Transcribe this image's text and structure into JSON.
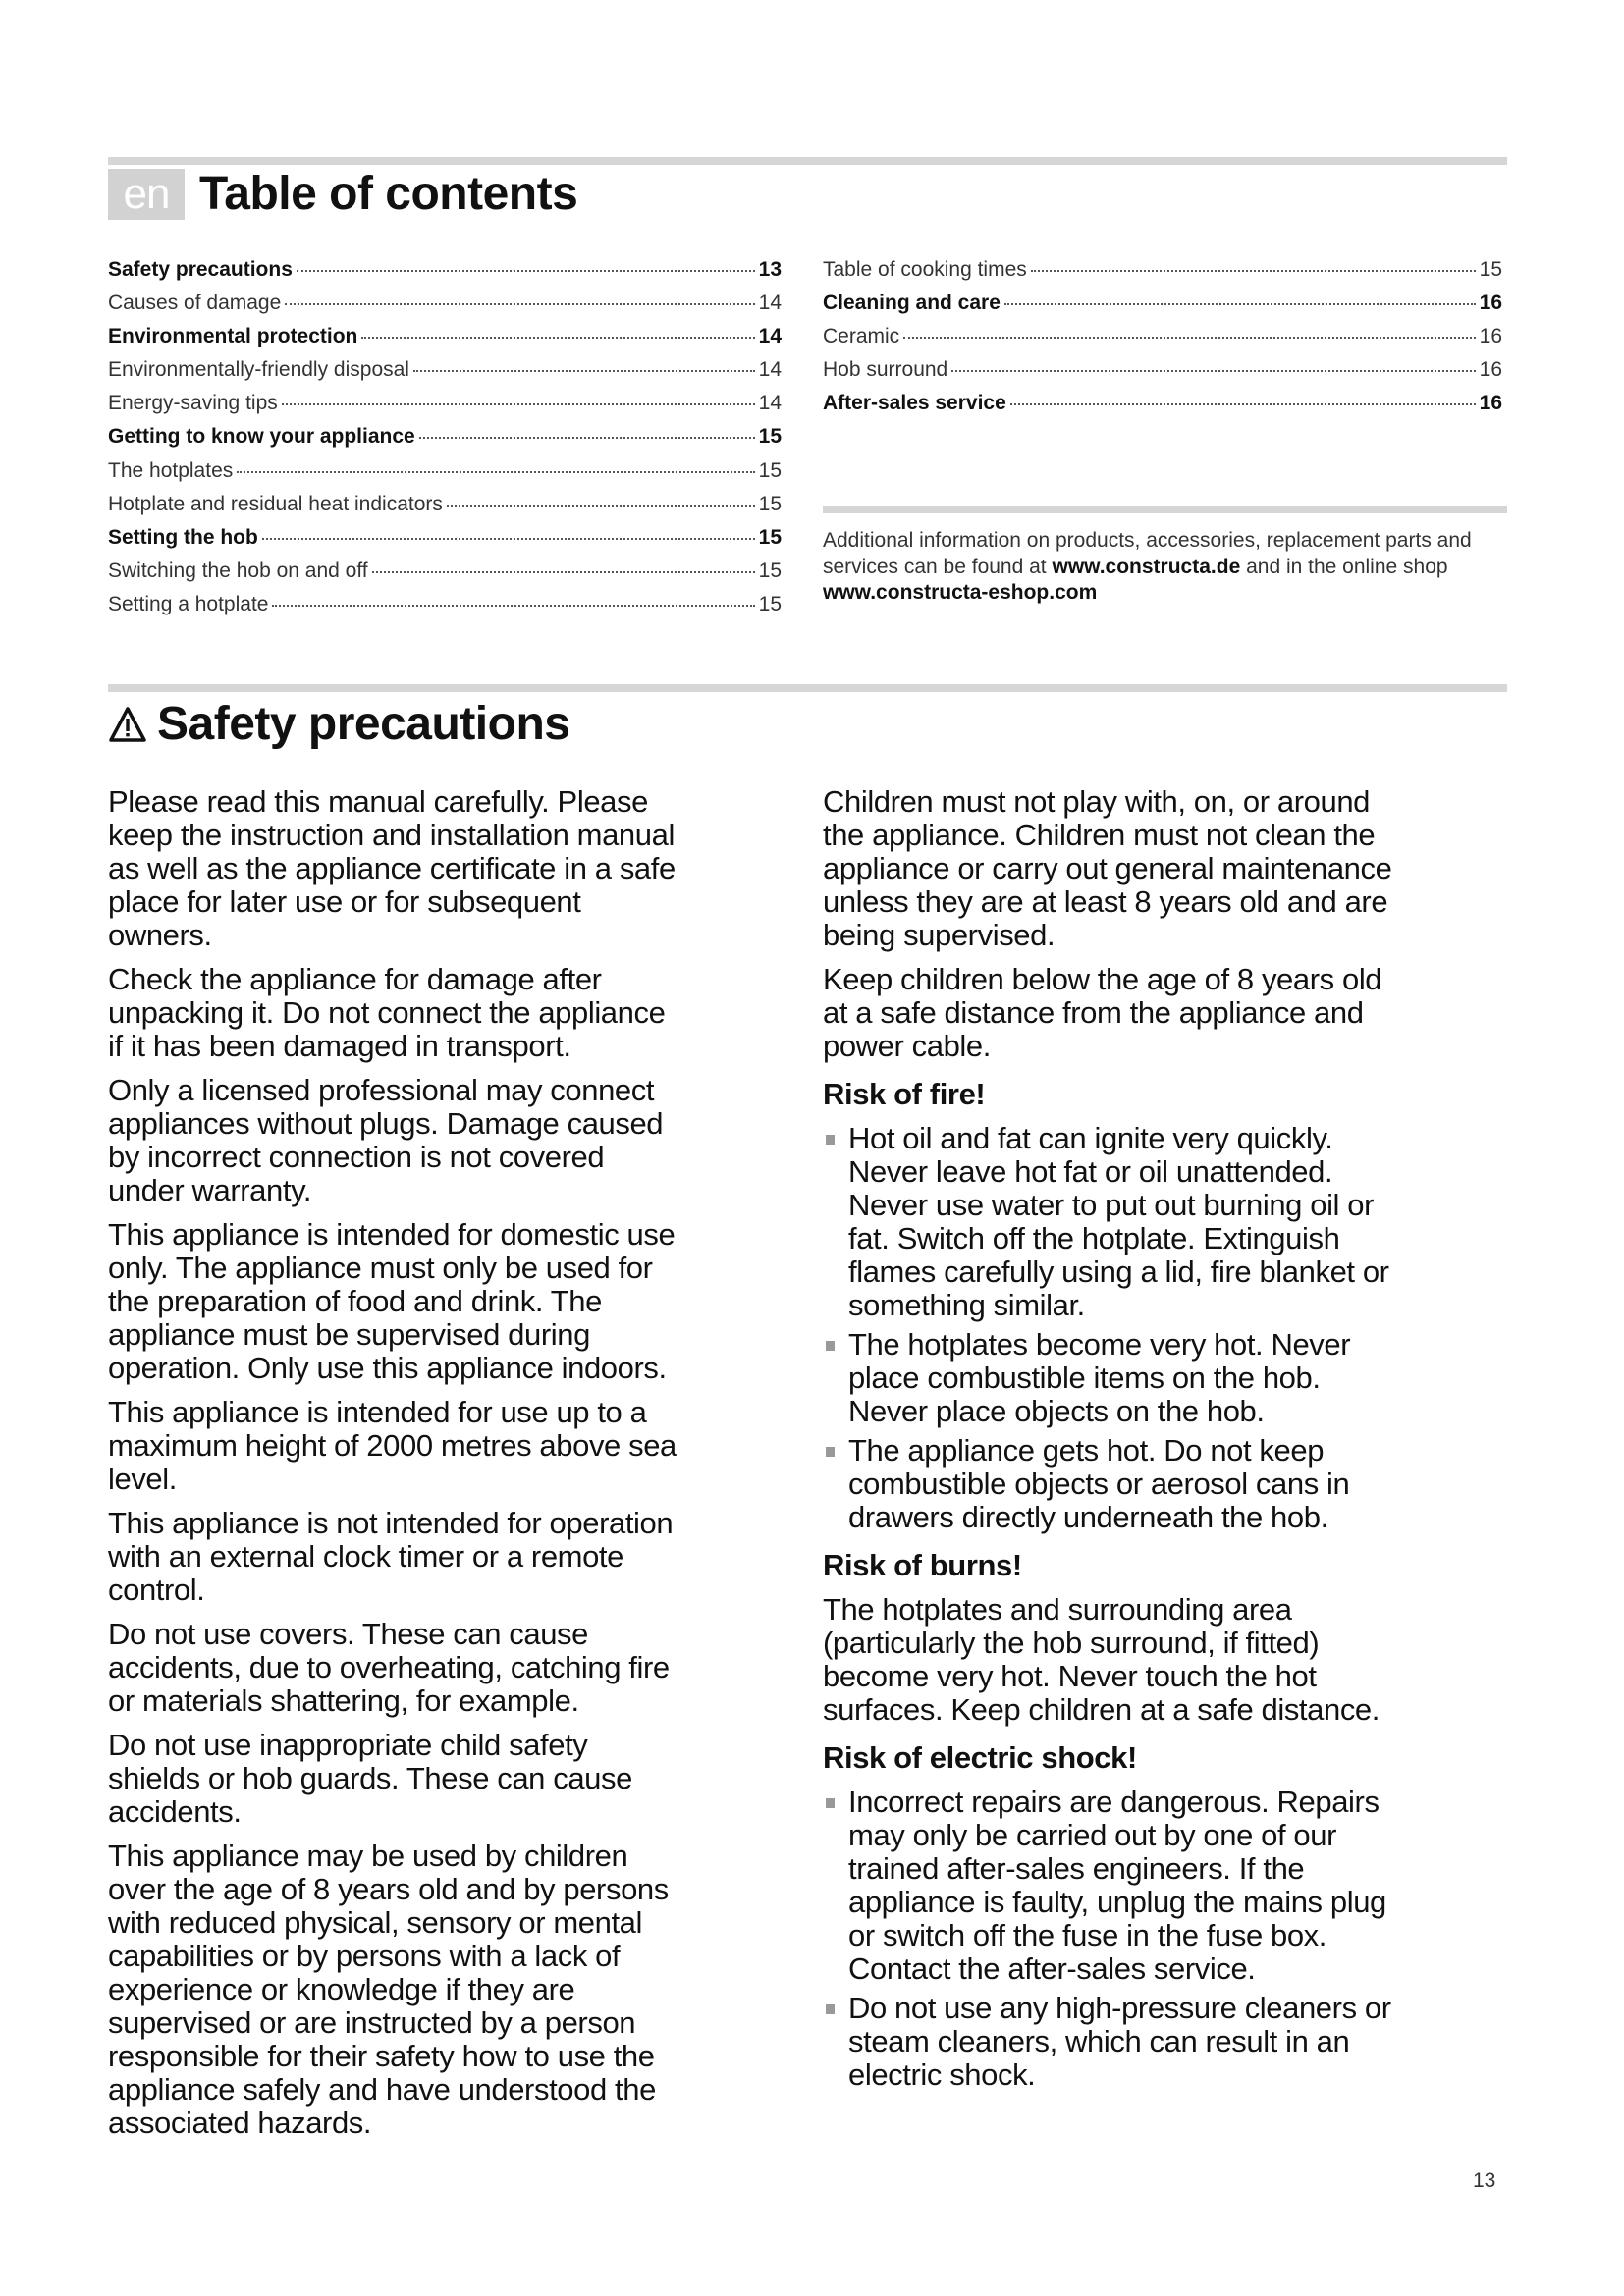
{
  "toc": {
    "lang_badge": "en",
    "title": "Table of contents",
    "left": [
      {
        "label": "Safety precautions",
        "page": "13",
        "main": true
      },
      {
        "label": "Causes of damage",
        "page": "14",
        "main": false
      },
      {
        "label": "Environmental protection",
        "page": "14",
        "main": true
      },
      {
        "label": "Environmentally-friendly disposal",
        "page": "14",
        "main": false
      },
      {
        "label": "Energy-saving tips",
        "page": "14",
        "main": false
      },
      {
        "label": "Getting to know your appliance",
        "page": "15",
        "main": true
      },
      {
        "label": "The hotplates",
        "page": "15",
        "main": false
      },
      {
        "label": "Hotplate and residual heat indicators",
        "page": "15",
        "main": false
      },
      {
        "label": "Setting the hob",
        "page": "15",
        "main": true
      },
      {
        "label": "Switching the hob on and off",
        "page": "15",
        "main": false
      },
      {
        "label": "Setting a hotplate",
        "page": "15",
        "main": false
      }
    ],
    "right": [
      {
        "label": "Table of cooking times",
        "page": "15",
        "main": false
      },
      {
        "label": "Cleaning and care",
        "page": "16",
        "main": true
      },
      {
        "label": "Ceramic",
        "page": "16",
        "main": false
      },
      {
        "label": "Hob surround",
        "page": "16",
        "main": false
      },
      {
        "label": "After-sales service",
        "page": "16",
        "main": true
      }
    ],
    "additional_info": {
      "text1": "Additional information on products, accessories, replacement parts and services can be found at ",
      "link1": "www.constructa.de",
      "text2": " and in the online shop ",
      "link2": "www.constructa-eshop.com"
    }
  },
  "safety": {
    "title": "Safety precautions",
    "icon": "warning-triangle-icon",
    "left": [
      {
        "type": "p",
        "text": "Please read this manual carefully. Please\nkeep the instruction and installation manual\nas well as the appliance certificate in a safe\nplace for later use or for subsequent\nowners."
      },
      {
        "type": "p",
        "text": "Check the appliance for damage after\nunpacking it. Do not connect the appliance\nif it has been damaged in transport."
      },
      {
        "type": "p",
        "text": "Only a licensed professional may connect\nappliances without plugs. Damage caused\nby incorrect connection is not covered\nunder warranty."
      },
      {
        "type": "p",
        "text": "This appliance is intended for domestic use\nonly. The appliance must only be used for\nthe preparation of food and drink. The\nappliance must be supervised during\noperation. Only use this appliance indoors."
      },
      {
        "type": "p",
        "text": "This appliance is intended for use up to a\nmaximum height of 2000 metres above sea\nlevel."
      },
      {
        "type": "p",
        "text": "This appliance is not intended for operation\nwith an external clock timer or a remote\ncontrol."
      },
      {
        "type": "p",
        "text": "Do not use covers. These can cause\naccidents, due to overheating, catching fire\nor materials shattering, for example."
      },
      {
        "type": "p",
        "text": "Do not use inappropriate child safety\nshields or hob guards. These can cause\naccidents."
      },
      {
        "type": "p",
        "text": "This appliance may be used by children\nover the age of 8 years old and by persons\nwith reduced physical, sensory or mental\ncapabilities or by persons with a lack of\nexperience or knowledge if they are\nsupervised or are instructed by a person\nresponsible for their safety how to use the\nappliance safely and have understood the\nassociated hazards."
      }
    ],
    "right": [
      {
        "type": "p",
        "text": "Children must not play with, on, or around\nthe appliance. Children must not clean the\nappliance or carry out general maintenance\nunless they are at least 8 years old and are\nbeing supervised."
      },
      {
        "type": "p",
        "text": "Keep children below the age of 8 years old\nat a safe distance from the appliance and\npower cable."
      },
      {
        "type": "h",
        "text": "Risk of fire!"
      },
      {
        "type": "li",
        "text": "Hot oil and fat can ignite very quickly.\nNever leave hot fat or oil unattended.\nNever use water to put out burning oil or\nfat. Switch off the hotplate. Extinguish\nflames carefully using a lid, fire blanket or\nsomething similar."
      },
      {
        "type": "li",
        "text": "The hotplates become very hot. Never\nplace combustible items on the hob.\nNever place objects on the hob."
      },
      {
        "type": "li",
        "text": "The appliance gets hot. Do not keep\ncombustible objects or aerosol cans in\ndrawers directly underneath the hob."
      },
      {
        "type": "h",
        "text": "Risk of burns!"
      },
      {
        "type": "p",
        "text": "The hotplates and surrounding area\n(particularly the hob surround, if fitted)\nbecome very hot. Never touch the hot\nsurfaces. Keep children at a safe distance."
      },
      {
        "type": "h",
        "text": "Risk of electric shock!"
      },
      {
        "type": "li",
        "text": "Incorrect repairs are dangerous. Repairs\nmay only be carried out by one of our\ntrained after-sales engineers. If the\nappliance is faulty, unplug the mains plug\nor switch off the fuse in the fuse box.\nContact the after-sales service."
      },
      {
        "type": "li",
        "text": "Do not use any high-pressure cleaners or\nsteam cleaners, which can result in an\nelectric shock."
      }
    ]
  },
  "page_number": "13",
  "colors": {
    "rule": "#d6d6d6",
    "badge": "#d2d2d2",
    "bullet": "#999999"
  }
}
